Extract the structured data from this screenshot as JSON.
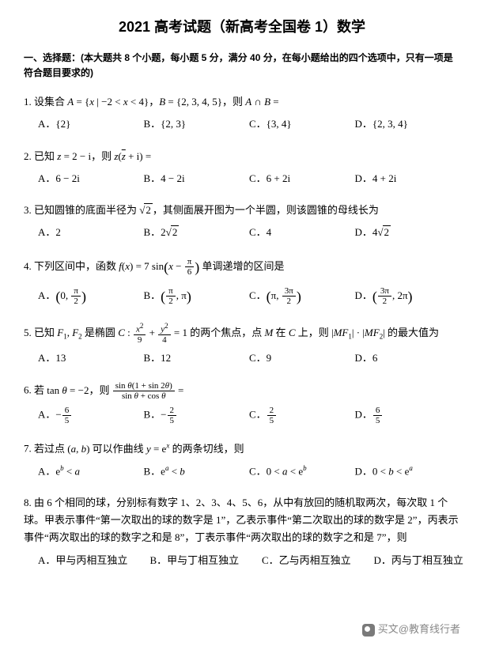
{
  "title": "2021 高考试题（新高考全国卷 1）数学",
  "instructions": "一、选择题：(本大题共 8 个小题，每小题 5 分，满分 40 分，在每小题给出的四个选项中，只有一项是符合题目要求的)",
  "questions": [
    {
      "num": "1.",
      "stem_pre": "设集合 ",
      "stem_math": "A = {x | −2 < x < 4}，B = {2, 3, 4, 5}，则 A ∩ B =",
      "opts": [
        "A．{2}",
        "B．{2, 3}",
        "C．{3, 4}",
        "D．{2, 3, 4}"
      ]
    },
    {
      "num": "2.",
      "stem": "已知 z = 2 − i，则 z(z̄ + i) =",
      "opts": [
        "A．6 − 2i",
        "B．4 − 2i",
        "C．6 + 2i",
        "D．4 + 2i"
      ]
    },
    {
      "num": "3.",
      "stem": "已知圆锥的底面半径为 √2，其侧面展开图为一个半圆，则该圆锥的母线长为",
      "opts": [
        "A．2",
        "B．2√2",
        "C．4",
        "D．4√2"
      ]
    },
    {
      "num": "4.",
      "stem": "下列区间中，函数 f(x) = 7 sin(x − π/6) 单调递增的区间是",
      "opts": [
        "A．(0, π/2)",
        "B．(π/2, π)",
        "C．(π, 3π/2)",
        "D．(3π/2, 2π)"
      ]
    },
    {
      "num": "5.",
      "stem": "已知 F₁, F₂ 是椭圆 C : x²/9 + y²/4 = 1 的两个焦点，点 M 在 C 上，则 |MF₁|·|MF₂| 的最大值为",
      "opts": [
        "A．13",
        "B．12",
        "C．9",
        "D．6"
      ]
    },
    {
      "num": "6.",
      "stem": "若 tan θ = −2，则 sin θ(1 + sin 2θ) / (sin θ + cos θ) =",
      "opts": [
        "A．−6/5",
        "B．−2/5",
        "C．2/5",
        "D．6/5"
      ]
    },
    {
      "num": "7.",
      "stem": "若过点 (a, b) 可以作曲线 y = eˣ 的两条切线，则",
      "opts": [
        "A．eᵇ < a",
        "B．eᵃ < b",
        "C．0 < a < eᵇ",
        "D．0 < b < eᵃ"
      ]
    },
    {
      "num": "8.",
      "stem": "由 6 个相同的球，分别标有数字 1、2、3、4、5、6，从中有放回的随机取两次，每次取 1 个球。甲表示事件“第一次取出的球的数字是 1”，乙表示事件“第二次取出的球的数字是 2”，丙表示事件“两次取出的球的数字之和是 8”，丁表示事件“两次取出的球的数字之和是 7”，则",
      "opts": [
        "A．甲与丙相互独立",
        "B．甲与丁相互独立",
        "C．乙与丙相互独立",
        "D．丙与丁相互独立"
      ]
    }
  ],
  "watermark": "买文@教育线行者",
  "colors": {
    "text": "#000000",
    "bg": "#ffffff",
    "wm": "#888888"
  }
}
